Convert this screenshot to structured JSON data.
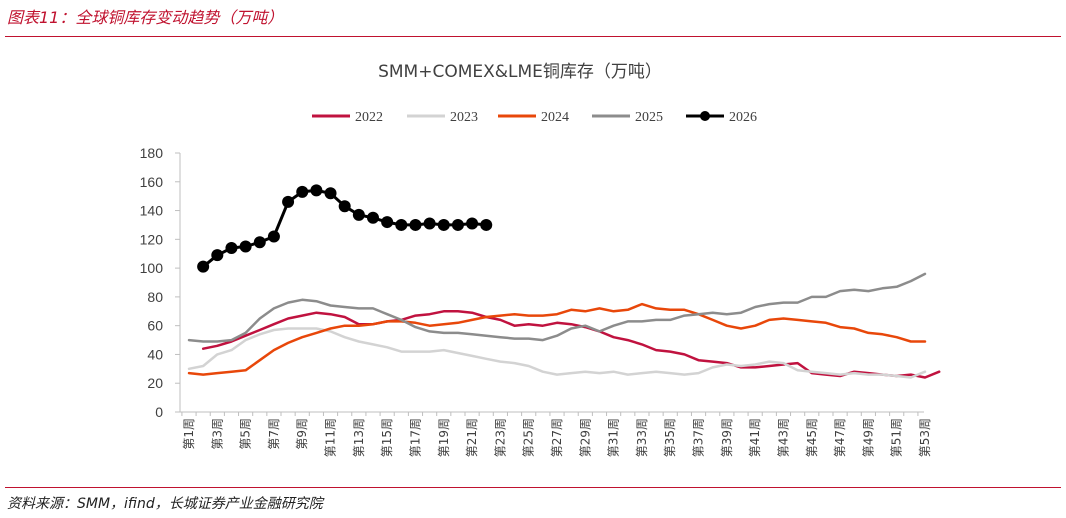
{
  "figure": {
    "title": "图表11：全球铜库存变动趋势（万吨）",
    "source": "资料来源：SMM，ifind，长城证券产业金融研究院"
  },
  "chart_data": {
    "type": "line",
    "title": "SMM+COMEX&LME铜库存（万吨）",
    "xlabel": "",
    "ylabel": "",
    "ylim": [
      0,
      180
    ],
    "yticks": [
      "0",
      "20",
      "40",
      "60",
      "80",
      "100",
      "120",
      "140",
      "160",
      "180"
    ],
    "xticks": [
      "第1周",
      "第3周",
      "第5周",
      "第7周",
      "第9周",
      "第11周",
      "第13周",
      "第15周",
      "第17周",
      "第19周",
      "第21周",
      "第23周",
      "第25周",
      "第27周",
      "第29周",
      "第31周",
      "第33周",
      "第35周",
      "第37周",
      "第39周",
      "第41周",
      "第43周",
      "第45周",
      "第47周",
      "第49周",
      "第51周",
      "第53周"
    ],
    "grid": false,
    "legend_position": "top",
    "series": [
      {
        "name": "2022",
        "color": "#c0123f",
        "markers": false,
        "start_week": 2,
        "values": [
          44,
          46,
          49,
          53,
          57,
          61,
          65,
          67,
          69,
          68,
          66,
          61,
          61,
          63,
          64,
          67,
          68,
          70,
          70,
          69,
          66,
          64,
          60,
          61,
          60,
          62,
          61,
          59,
          56,
          52,
          50,
          47,
          43,
          42,
          40,
          36,
          35,
          34,
          31,
          31,
          32,
          33,
          34,
          27,
          26,
          25,
          28,
          27,
          26,
          25,
          26,
          24,
          28
        ]
      },
      {
        "name": "2023",
        "color": "#d3d3d3",
        "markers": false,
        "start_week": 1,
        "values": [
          30,
          32,
          40,
          43,
          50,
          54,
          57,
          58,
          58,
          58,
          56,
          52,
          49,
          47,
          45,
          42,
          42,
          42,
          43,
          41,
          39,
          37,
          35,
          34,
          32,
          28,
          26,
          27,
          28,
          27,
          28,
          26,
          27,
          28,
          27,
          26,
          27,
          31,
          33,
          32,
          33,
          35,
          34,
          29,
          28,
          27,
          26,
          27,
          26,
          26,
          25,
          24,
          28
        ]
      },
      {
        "name": "2024",
        "color": "#e8470a",
        "markers": false,
        "start_week": 1,
        "values": [
          27,
          26,
          27,
          28,
          29,
          36,
          43,
          48,
          52,
          55,
          58,
          60,
          60,
          61,
          63,
          63,
          62,
          60,
          61,
          62,
          64,
          66,
          67,
          68,
          67,
          67,
          68,
          71,
          70,
          72,
          70,
          71,
          75,
          72,
          71,
          71,
          68,
          64,
          60,
          58,
          60,
          64,
          65,
          64,
          63,
          62,
          59,
          58,
          55,
          54,
          52,
          49,
          49
        ]
      },
      {
        "name": "2025",
        "color": "#8c8c8c",
        "markers": false,
        "start_week": 1,
        "values": [
          50,
          49,
          49,
          50,
          55,
          65,
          72,
          76,
          78,
          77,
          74,
          73,
          72,
          72,
          68,
          64,
          59,
          56,
          55,
          55,
          54,
          53,
          52,
          51,
          51,
          50,
          53,
          58,
          60,
          56,
          60,
          63,
          63,
          64,
          64,
          67,
          68,
          69,
          68,
          69,
          73,
          75,
          76,
          76,
          80,
          80,
          84,
          85,
          84,
          86,
          87,
          91,
          96
        ]
      },
      {
        "name": "2026",
        "color": "#000000",
        "markers": true,
        "start_week": 2,
        "values": [
          101,
          109,
          114,
          115,
          118,
          122,
          146,
          153,
          154,
          152,
          143,
          137,
          135,
          132,
          130,
          130,
          131,
          130,
          130,
          131,
          130
        ]
      }
    ]
  }
}
